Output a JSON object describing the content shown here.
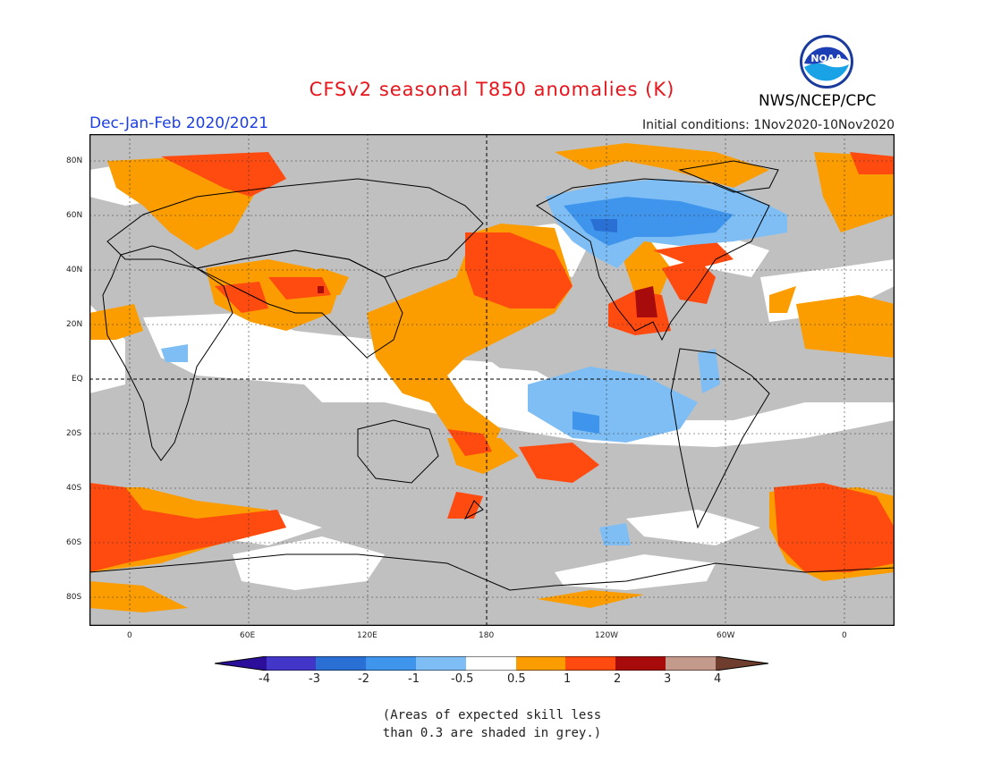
{
  "title": "CFSv2 seasonal T850 anomalies (K)",
  "season": "Dec-Jan-Feb 2020/2021",
  "initial_conditions": "Initial conditions: 1Nov2020-10Nov2020",
  "agency": "NWS/NCEP/CPC",
  "logo_text": "NOAA",
  "lat_labels": [
    "80N",
    "60N",
    "40N",
    "20N",
    "EQ",
    "20S",
    "40S",
    "60S",
    "80S"
  ],
  "lon_labels": [
    "0",
    "60E",
    "120E",
    "180",
    "120W",
    "60W",
    "0"
  ],
  "colorbar": {
    "labels": [
      "-4",
      "-3",
      "-2",
      "-1",
      "-0.5",
      "0.5",
      "1",
      "2",
      "3",
      "4"
    ],
    "colors": [
      "#2b0f9a",
      "#4236c9",
      "#2a6fd4",
      "#3f95ec",
      "#7fbef4",
      "#ffffff",
      "#fb9d00",
      "#ff4a10",
      "#a80b0b",
      "#c49a8c",
      "#6e3d2e"
    ]
  },
  "legend_note_line1": "(Areas of expected skill less",
  "legend_note_line2": "than 0.3 are shaded in grey.)",
  "map_colors": {
    "grey": "#c0c0c0",
    "white": "#ffffff",
    "orange": "#fb9d00",
    "red": "#ff4a10",
    "darkred": "#a80b0b",
    "lightblue": "#7fbef4",
    "blue": "#3f95ec",
    "midblue": "#2a6fd4"
  }
}
